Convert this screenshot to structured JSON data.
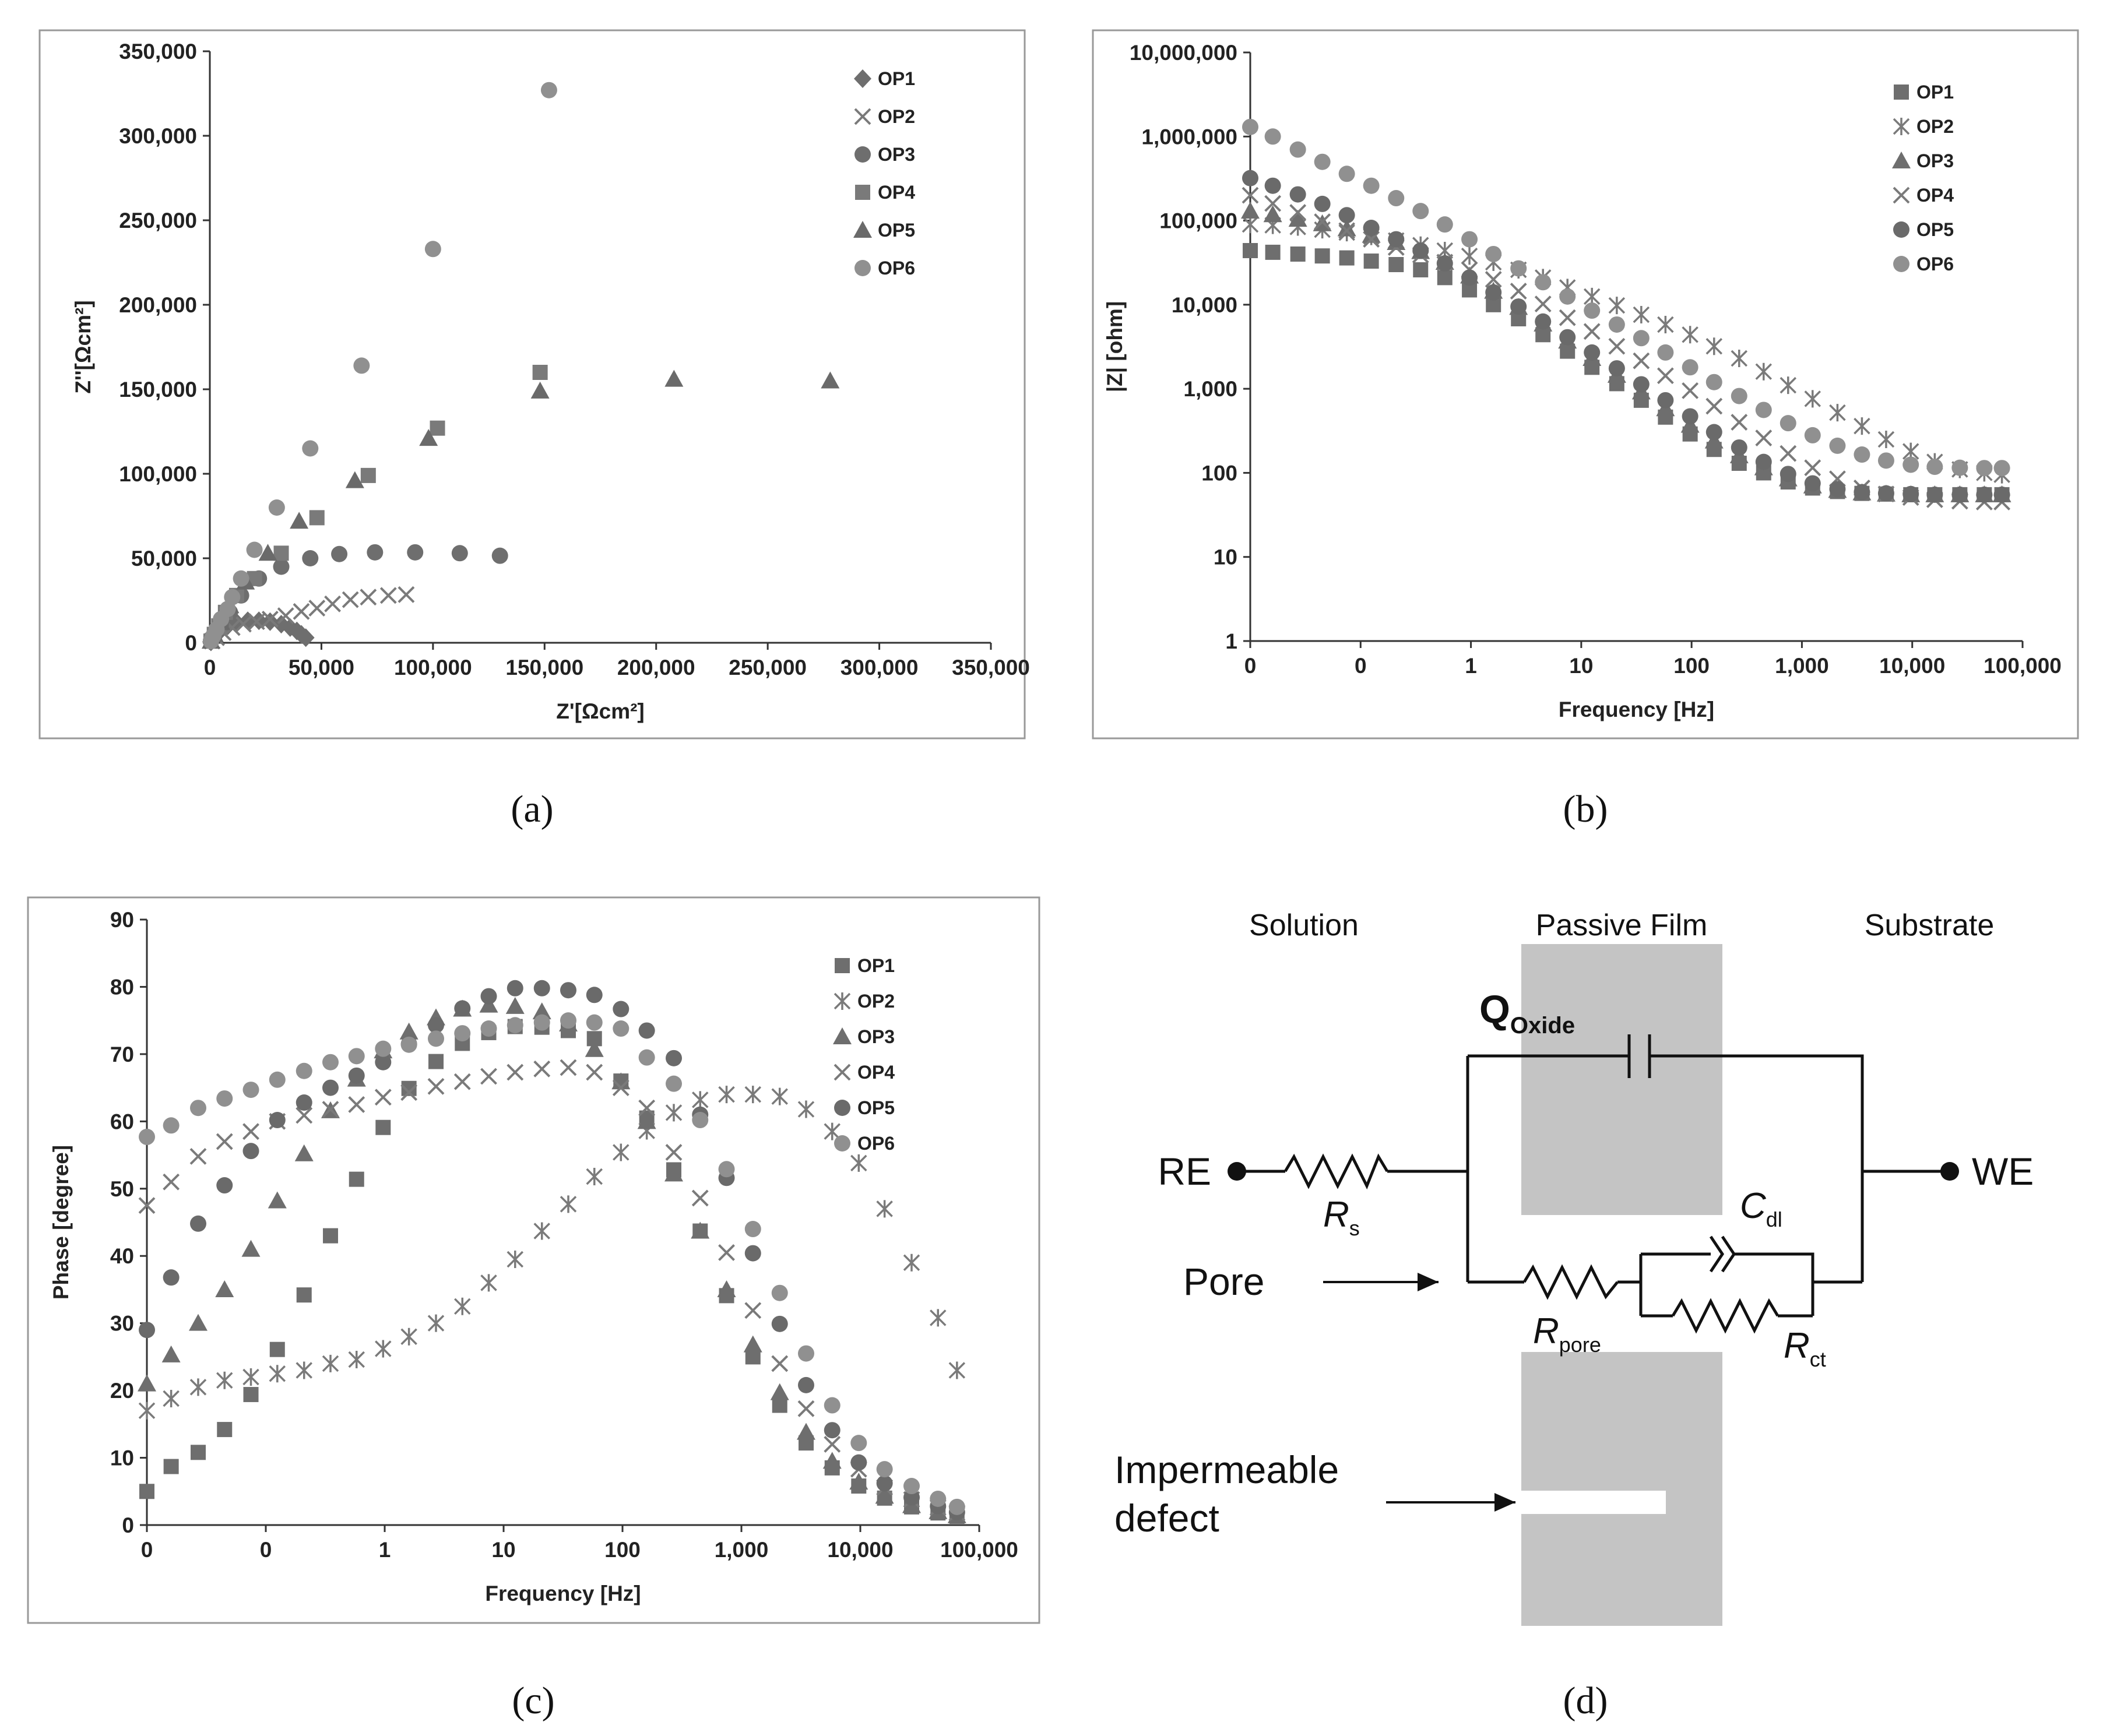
{
  "figure": {
    "panel_labels": [
      "(a)",
      "(b)",
      "(c)",
      "(d)"
    ]
  },
  "colors": {
    "marker": "#707070",
    "marker_light": "#8c8c8c",
    "text": "#222222",
    "film": "#c4c4c4",
    "frame": "#999999"
  },
  "chart_data": [
    {
      "id": "a",
      "type": "scatter",
      "title": "",
      "xlabel": "Z'[Ωcm²]",
      "ylabel": "Z''[Ωcm²]",
      "xlim": [
        0,
        350000
      ],
      "ylim": [
        0,
        350000
      ],
      "xticks": [
        0,
        50000,
        100000,
        150000,
        200000,
        250000,
        300000,
        350000
      ],
      "yticks": [
        0,
        50000,
        100000,
        150000,
        200000,
        250000,
        300000,
        350000
      ],
      "xtick_labels": [
        "0",
        "50,000",
        "100,000",
        "150,000",
        "200,000",
        "250,000",
        "300,000",
        "350,000"
      ],
      "ytick_labels": [
        "0",
        "50,000",
        "100,000",
        "150,000",
        "200,000",
        "250,000",
        "300,000",
        "350,000"
      ],
      "legend_position": "top-right",
      "series": [
        {
          "name": "OP1",
          "marker": "diamond",
          "points": [
            [
              500,
              500
            ],
            [
              1500,
              2500
            ],
            [
              3000,
              5000
            ],
            [
              5000,
              7500
            ],
            [
              8000,
              10000
            ],
            [
              12000,
              12000
            ],
            [
              17000,
              13000
            ],
            [
              22000,
              13000
            ],
            [
              27000,
              12500
            ],
            [
              32000,
              11000
            ],
            [
              36000,
              9000
            ],
            [
              39000,
              7000
            ],
            [
              41000,
              5000
            ],
            [
              43000,
              3000
            ]
          ]
        },
        {
          "name": "OP2",
          "marker": "x",
          "points": [
            [
              1000,
              1000
            ],
            [
              3000,
              3000
            ],
            [
              6000,
              6000
            ],
            [
              10000,
              9000
            ],
            [
              15000,
              11000
            ],
            [
              21000,
              12500
            ],
            [
              27000,
              14000
            ],
            [
              34000,
              16000
            ],
            [
              41000,
              18500
            ],
            [
              48000,
              20500
            ],
            [
              55000,
              23000
            ],
            [
              63000,
              25500
            ],
            [
              71000,
              27000
            ],
            [
              80000,
              28000
            ],
            [
              88000,
              28500
            ]
          ]
        },
        {
          "name": "OP3",
          "marker": "circle",
          "points": [
            [
              500,
              1000
            ],
            [
              2000,
              5000
            ],
            [
              5000,
              11000
            ],
            [
              9000,
              18000
            ],
            [
              14000,
              28000
            ],
            [
              22000,
              38000
            ],
            [
              32000,
              45000
            ],
            [
              45000,
              50000
            ],
            [
              58000,
              52500
            ],
            [
              74000,
              53500
            ],
            [
              92000,
              53500
            ],
            [
              112000,
              53000
            ],
            [
              130000,
              51500
            ]
          ]
        },
        {
          "name": "OP4",
          "marker": "square",
          "points": [
            [
              500,
              1000
            ],
            [
              2000,
              5000
            ],
            [
              4000,
              10000
            ],
            [
              7000,
              18000
            ],
            [
              12000,
              28000
            ],
            [
              20000,
              38000
            ],
            [
              32000,
              53000
            ],
            [
              48000,
              74000
            ],
            [
              71000,
              99000
            ],
            [
              102000,
              127000
            ],
            [
              148000,
              160000
            ]
          ]
        },
        {
          "name": "OP5",
          "marker": "triangle",
          "points": [
            [
              500,
              1000
            ],
            [
              2000,
              5000
            ],
            [
              5000,
              12000
            ],
            [
              9000,
              22000
            ],
            [
              16000,
              36000
            ],
            [
              26000,
              53000
            ],
            [
              40000,
              72000
            ],
            [
              65000,
              96000
            ],
            [
              98000,
              121000
            ],
            [
              148000,
              149000
            ],
            [
              208000,
              156000
            ],
            [
              278000,
              155000
            ]
          ]
        },
        {
          "name": "OP6",
          "marker": "circle",
          "points": [
            [
              500,
              1000
            ],
            [
              1500,
              4000
            ],
            [
              3000,
              8000
            ],
            [
              5000,
              14000
            ],
            [
              8000,
              20000
            ],
            [
              10000,
              27000
            ],
            [
              14000,
              38000
            ],
            [
              20000,
              55000
            ],
            [
              30000,
              80000
            ],
            [
              45000,
              115000
            ],
            [
              68000,
              164000
            ],
            [
              100000,
              233000
            ],
            [
              152000,
              327000
            ]
          ]
        }
      ]
    },
    {
      "id": "b",
      "type": "scatter",
      "title": "",
      "xlabel": "Frequency [Hz]",
      "ylabel": "|Z| [ohm]",
      "xscale": "log",
      "yscale": "log",
      "xlim": [
        0.01,
        100000
      ],
      "ylim": [
        1,
        10000000
      ],
      "xticks": [
        0.01,
        0.1,
        1,
        10,
        100,
        1000,
        10000,
        100000
      ],
      "xtick_labels": [
        "0",
        "0",
        "1",
        "10",
        "100",
        "1,000",
        "10,000",
        "100,000"
      ],
      "yticks": [
        1,
        10,
        100,
        1000,
        10000,
        100000,
        1000000,
        10000000
      ],
      "ytick_labels": [
        "1",
        "10",
        "100",
        "1,000",
        "10,000",
        "100,000",
        "1,000,000",
        "10,000,000"
      ],
      "legend_position": "top-right",
      "freq": [
        0.01,
        0.016,
        0.027,
        0.045,
        0.075,
        0.125,
        0.21,
        0.35,
        0.58,
        0.97,
        1.6,
        2.7,
        4.5,
        7.5,
        12.5,
        21,
        35,
        58,
        97,
        160,
        270,
        450,
        750,
        1250,
        2100,
        3500,
        5800,
        9700,
        16000,
        27000,
        45000,
        65000
      ],
      "series": [
        {
          "name": "OP1",
          "marker": "square",
          "values": [
            44000,
            42000,
            40000,
            38000,
            36000,
            33000,
            30000,
            26000,
            21000,
            15000,
            10000,
            6800,
            4400,
            2800,
            1800,
            1150,
            730,
            460,
            290,
            190,
            130,
            100,
            78,
            66,
            60,
            57,
            56,
            55,
            55,
            55,
            55,
            55
          ]
        },
        {
          "name": "OP2",
          "marker": "asterisk",
          "values": [
            90000,
            88000,
            84000,
            78000,
            72000,
            65000,
            58000,
            51000,
            44000,
            38000,
            32000,
            26000,
            21000,
            16000,
            12500,
            9800,
            7600,
            5800,
            4400,
            3200,
            2300,
            1600,
            1100,
            760,
            520,
            360,
            250,
            180,
            135,
            110,
            100,
            95
          ]
        },
        {
          "name": "OP3",
          "marker": "triangle",
          "values": [
            130000,
            118000,
            104000,
            92000,
            80000,
            67000,
            55000,
            43000,
            32000,
            22000,
            14500,
            9300,
            5900,
            3700,
            2300,
            1450,
            920,
            580,
            370,
            240,
            160,
            115,
            85,
            70,
            62,
            58,
            56,
            55,
            55,
            55,
            55,
            55
          ]
        },
        {
          "name": "OP4",
          "marker": "x",
          "values": [
            200000,
            160000,
            125000,
            97000,
            76000,
            60000,
            48000,
            39000,
            32000,
            26000,
            20000,
            14500,
            10200,
            7000,
            4800,
            3200,
            2150,
            1430,
            950,
            620,
            400,
            260,
            170,
            115,
            85,
            66,
            56,
            51,
            48,
            46,
            45,
            45
          ]
        },
        {
          "name": "OP5",
          "marker": "circle",
          "values": [
            320000,
            260000,
            205000,
            158000,
            116000,
            82000,
            60000,
            44000,
            31000,
            21000,
            14000,
            9500,
            6300,
            4100,
            2700,
            1750,
            1130,
            730,
            470,
            305,
            200,
            135,
            97,
            75,
            64,
            59,
            57,
            56,
            55,
            55,
            55,
            55
          ]
        },
        {
          "name": "OP6",
          "marker": "circle",
          "values": [
            1300000,
            1000000,
            700000,
            500000,
            360000,
            260000,
            185000,
            130000,
            90000,
            60000,
            40000,
            27000,
            18500,
            12500,
            8500,
            5800,
            4000,
            2700,
            1800,
            1200,
            820,
            560,
            390,
            280,
            210,
            165,
            140,
            125,
            118,
            115,
            114,
            114
          ]
        }
      ]
    },
    {
      "id": "c",
      "type": "scatter",
      "title": "",
      "xlabel": "Frequency [Hz]",
      "ylabel": "Phase [degree]",
      "xscale": "log",
      "xlim": [
        0.01,
        100000
      ],
      "ylim": [
        0,
        90
      ],
      "xticks": [
        0.01,
        0.1,
        1,
        10,
        100,
        1000,
        10000,
        100000
      ],
      "xtick_labels": [
        "0",
        "0",
        "1",
        "10",
        "100",
        "1,000",
        "10,000",
        "100,000"
      ],
      "yticks": [
        0,
        10,
        20,
        30,
        40,
        50,
        60,
        70,
        80,
        90
      ],
      "ytick_labels": [
        "0",
        "10",
        "20",
        "30",
        "40",
        "50",
        "60",
        "70",
        "80",
        "90"
      ],
      "legend_position": "top-right",
      "freq": [
        0.01,
        0.016,
        0.027,
        0.045,
        0.075,
        0.125,
        0.21,
        0.35,
        0.58,
        0.97,
        1.6,
        2.7,
        4.5,
        7.5,
        12.5,
        21,
        35,
        58,
        97,
        160,
        270,
        450,
        750,
        1250,
        2100,
        3500,
        5800,
        9700,
        16000,
        27000,
        45000,
        65000
      ],
      "series": [
        {
          "name": "OP1",
          "marker": "square",
          "values": [
            5,
            8.7,
            10.8,
            14.2,
            19.4,
            26.1,
            34.2,
            43,
            51.4,
            59.1,
            64.9,
            68.9,
            71.6,
            73.2,
            74.1,
            74,
            73.5,
            72.3,
            66,
            60.5,
            52.8,
            43.7,
            34.1,
            25,
            17.8,
            12.2,
            8.5,
            5.8,
            4,
            2.7,
            1.8,
            1.3
          ]
        },
        {
          "name": "OP2",
          "marker": "asterisk",
          "values": [
            17,
            18.8,
            20.5,
            21.5,
            22,
            22.5,
            23,
            24,
            24.6,
            26.2,
            28,
            30,
            32.5,
            36,
            39.5,
            43.7,
            47.7,
            51.8,
            55.4,
            58.6,
            61.3,
            63.2,
            64,
            64,
            63.7,
            61.8,
            58.5,
            53.8,
            47,
            39,
            30.8,
            23
          ]
        },
        {
          "name": "OP3",
          "marker": "triangle",
          "values": [
            21,
            25.3,
            30,
            35,
            41,
            48.2,
            55.2,
            61.6,
            66.3,
            70.5,
            73.3,
            75.4,
            76.7,
            77.3,
            77.1,
            76.3,
            74.5,
            70.7,
            65.9,
            60,
            52.2,
            43.7,
            35,
            26.8,
            19.7,
            13.8,
            9.5,
            6.4,
            4.3,
            2.9,
            2,
            1.4
          ]
        },
        {
          "name": "OP4",
          "marker": "x",
          "values": [
            47.5,
            51,
            54.8,
            57,
            58.5,
            60,
            60.9,
            61.8,
            62.5,
            63.6,
            64.3,
            65.2,
            65.9,
            66.7,
            67.3,
            67.8,
            68,
            67.3,
            65,
            62,
            55.4,
            48.6,
            40.5,
            31.9,
            24,
            17.3,
            12,
            8.3,
            5.6,
            3.8,
            2.6,
            1.8
          ]
        },
        {
          "name": "OP5",
          "marker": "circle",
          "values": [
            29,
            36.8,
            44.8,
            50.5,
            55.6,
            60.2,
            62.8,
            65,
            66.8,
            68.8,
            71.5,
            74.3,
            76.8,
            78.6,
            79.8,
            79.8,
            79.5,
            78.8,
            76.7,
            73.5,
            69.4,
            61,
            51.6,
            40.4,
            29.9,
            20.8,
            14.1,
            9.3,
            6.2,
            4.1,
            2.8,
            1.9
          ]
        },
        {
          "name": "OP6",
          "marker": "circle",
          "values": [
            57.7,
            59.4,
            62,
            63.4,
            64.7,
            66.2,
            67.5,
            68.8,
            69.7,
            70.8,
            71.4,
            72.3,
            73.1,
            73.8,
            74.3,
            74.7,
            75,
            74.7,
            73.8,
            69.5,
            65.6,
            60.2,
            52.9,
            44,
            34.5,
            25.5,
            17.8,
            12.2,
            8.3,
            5.8,
            3.9,
            2.7
          ]
        }
      ]
    }
  ],
  "circuit": {
    "regions": {
      "solution": "Solution",
      "film": "Passive Film",
      "substrate": "Substrate"
    },
    "q_main": "Q",
    "q_sub": "Oxide",
    "re": "RE",
    "we": "WE",
    "rs_main": "R",
    "rs_sub": "s",
    "rpore_main": "R",
    "rpore_sub": "pore",
    "rct_main": "R",
    "rct_sub": "ct",
    "cdl_main": "C",
    "cdl_sub": "dl",
    "pore": "Pore",
    "defect_line1": "Impermeable",
    "defect_line2": "defect"
  }
}
